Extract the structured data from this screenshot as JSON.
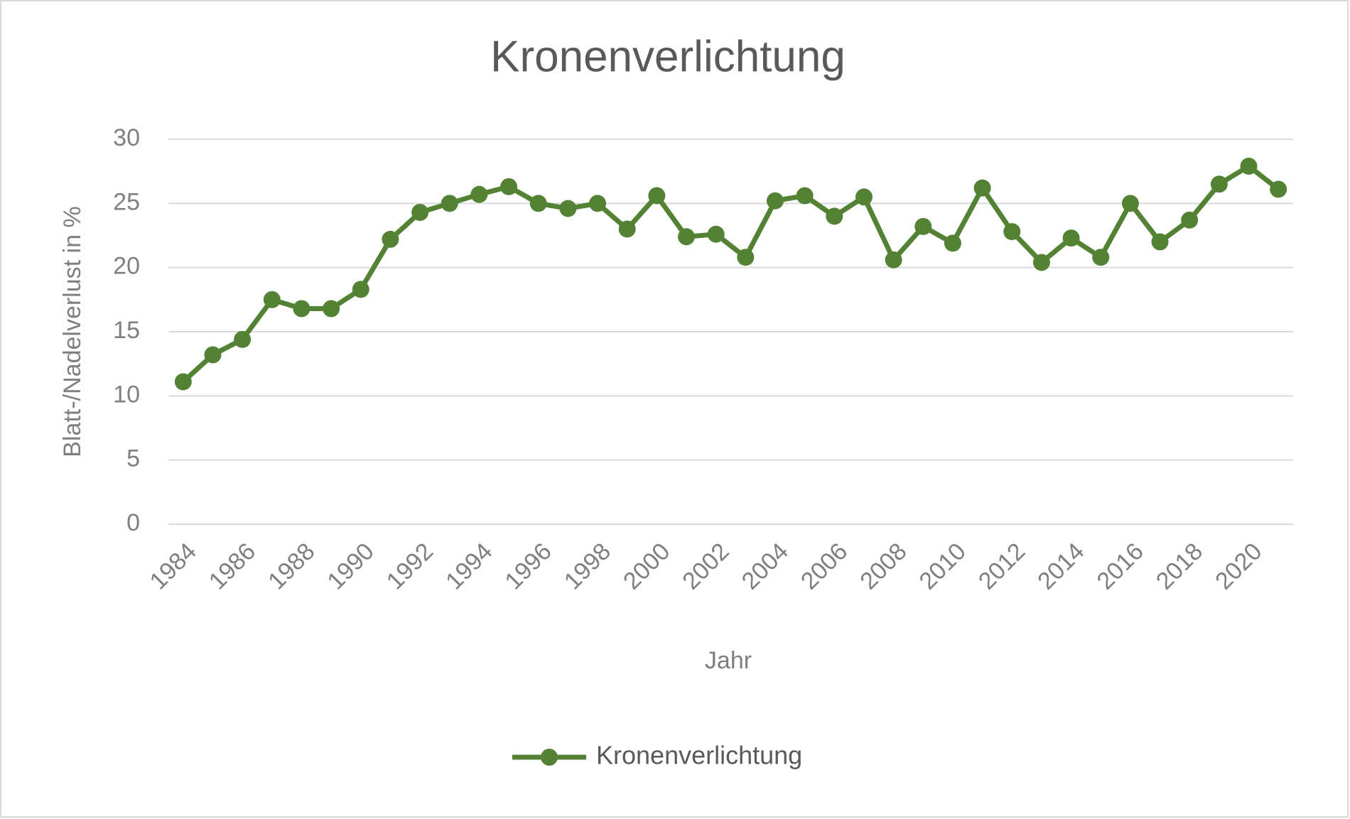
{
  "chart_data": {
    "type": "line",
    "title": "Kronenverlichtung",
    "x_label": "Jahr",
    "y_label": "Blatt-/Nadelverlust in %",
    "categories": [
      "1984",
      null,
      "1986",
      null,
      "1988",
      null,
      "1990",
      null,
      "1992",
      null,
      "1994",
      null,
      "1996",
      null,
      "1998",
      null,
      "2000",
      null,
      "2002",
      null,
      "2004",
      null,
      "2006",
      null,
      "2008",
      null,
      "2010",
      null,
      "2012",
      null,
      "2014",
      null,
      "2016",
      null,
      "2018",
      null,
      "2020",
      null
    ],
    "series": [
      {
        "name": "Kronenverlichtung",
        "color": "#548235",
        "values": [
          11.1,
          13.2,
          14.4,
          17.5,
          16.8,
          16.8,
          18.3,
          22.2,
          24.3,
          25.0,
          25.7,
          26.3,
          25.0,
          24.6,
          25.0,
          23.0,
          25.6,
          22.4,
          22.6,
          20.8,
          25.2,
          25.6,
          24.0,
          25.5,
          20.6,
          23.2,
          21.9,
          26.2,
          22.8,
          20.4,
          22.3,
          20.8,
          25.0,
          22.0,
          23.7,
          26.5,
          27.9,
          26.1
        ]
      }
    ],
    "ylim": [
      0,
      30
    ],
    "yticks": [
      0,
      5,
      10,
      15,
      20,
      25,
      30
    ],
    "grid": true,
    "legend": "bottom"
  }
}
